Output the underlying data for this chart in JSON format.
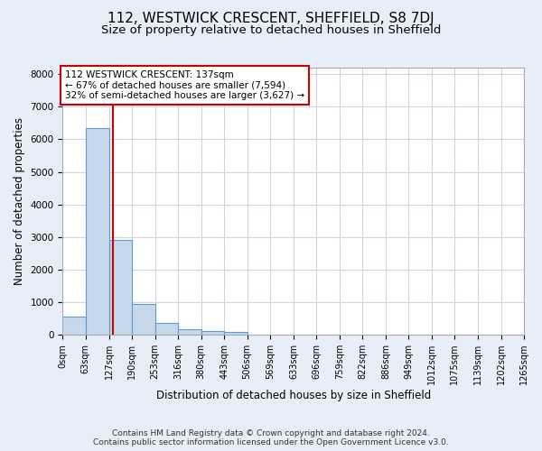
{
  "title": "112, WESTWICK CRESCENT, SHEFFIELD, S8 7DJ",
  "subtitle": "Size of property relative to detached houses in Sheffield",
  "xlabel": "Distribution of detached houses by size in Sheffield",
  "ylabel": "Number of detached properties",
  "footer_line1": "Contains HM Land Registry data © Crown copyright and database right 2024.",
  "footer_line2": "Contains public sector information licensed under the Open Government Licence v3.0.",
  "bin_edges": [
    0,
    63,
    127,
    190,
    253,
    316,
    380,
    443,
    506,
    569,
    633,
    696,
    759,
    822,
    886,
    949,
    1012,
    1075,
    1139,
    1202,
    1265
  ],
  "bar_heights": [
    570,
    6350,
    2900,
    950,
    360,
    175,
    110,
    80,
    0,
    0,
    0,
    0,
    0,
    0,
    0,
    0,
    0,
    0,
    0,
    0
  ],
  "bar_color": "#c8d8eb",
  "bar_edgecolor": "#5b9bd5",
  "grid_color": "#c8d4e4",
  "property_sqm": 137,
  "vline_color": "#cc0000",
  "annotation_text": "112 WESTWICK CRESCENT: 137sqm\n← 67% of detached houses are smaller (7,594)\n32% of semi-detached houses are larger (3,627) →",
  "annotation_box_color": "#ffffff",
  "annotation_box_edgecolor": "#cc0000",
  "ylim": [
    0,
    8200
  ],
  "yticks": [
    0,
    1000,
    2000,
    3000,
    4000,
    5000,
    6000,
    7000,
    8000
  ],
  "ax_background": "#ffffff",
  "fig_background": "#e8eef8",
  "title_fontsize": 11,
  "subtitle_fontsize": 9.5,
  "tick_label_fontsize": 7,
  "ylabel_fontsize": 8.5,
  "xlabel_fontsize": 8.5,
  "footer_fontsize": 6.5,
  "annotation_fontsize": 7.5
}
